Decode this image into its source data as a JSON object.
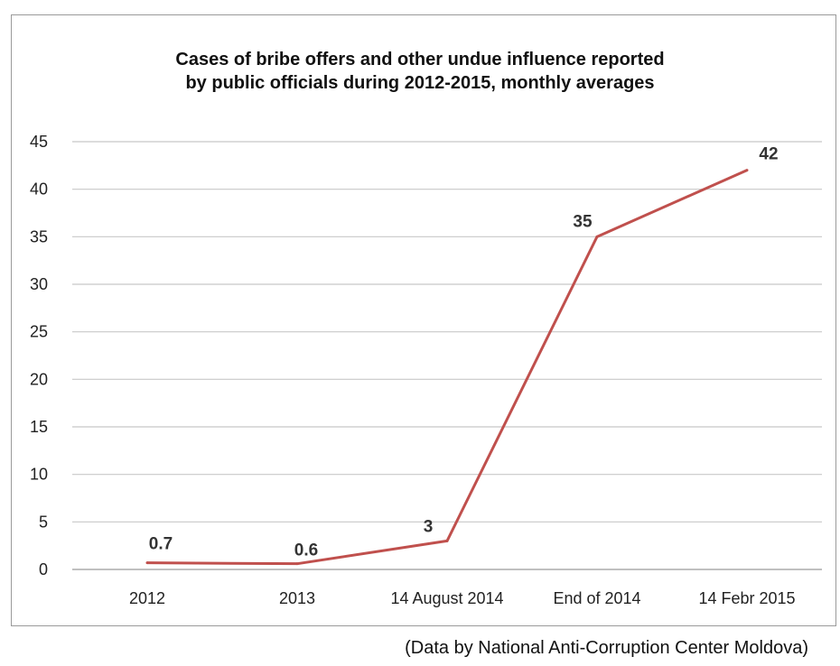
{
  "chart_data": {
    "type": "line",
    "title": "Cases of bribe offers and other undue influence reported",
    "subtitle": "by public officials during 2012-2015, monthly averages",
    "categories": [
      "2012",
      "2013",
      "14 August 2014",
      "End of 2014",
      "14 Febr 2015"
    ],
    "series": [
      {
        "values": [
          0.7,
          0.6,
          3,
          35,
          42
        ],
        "data_labels": [
          "0.7",
          "0.6",
          "3",
          "35",
          "42"
        ],
        "color": "#c0504d"
      }
    ],
    "ylim": [
      0,
      45
    ],
    "yticks": [
      0,
      5,
      10,
      15,
      20,
      25,
      30,
      35,
      40,
      45
    ],
    "grid": true,
    "xlabel": "",
    "ylabel": "",
    "legend": "none"
  },
  "source": "(Data by National Anti-Corruption Center Moldova)"
}
